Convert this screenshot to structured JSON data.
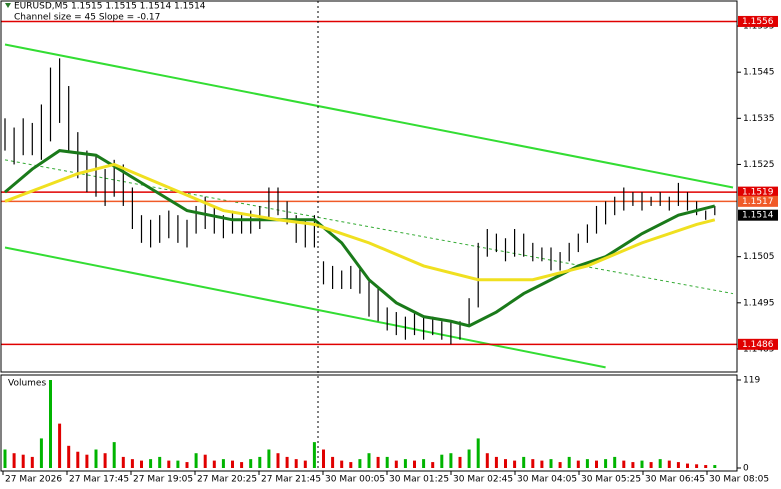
{
  "header": {
    "symbol_line": "EURUSD,M5  1.1515 1.1515 1.1514 1.1514",
    "indicator_line": "Channel size = 45 Slope = -0.17"
  },
  "chart_data": [
    {
      "type": "ohlc",
      "color": "#000000",
      "high": [
        1.1535,
        1.1533,
        1.1535,
        1.1534,
        1.1538,
        1.1546,
        1.1548,
        1.1542,
        1.1532,
        1.1528,
        1.1527,
        1.1524,
        1.1526,
        1.1525,
        1.152,
        1.1514,
        1.1513,
        1.1514,
        1.1515,
        1.1514,
        1.1513,
        1.1516,
        1.1518,
        1.1516,
        1.1514,
        1.1515,
        1.1514,
        1.1515,
        1.1516,
        1.152,
        1.152,
        1.1517,
        1.1514,
        1.1513,
        1.1514,
        1.1504,
        1.1503,
        1.1502,
        1.1503,
        1.1503,
        1.15,
        1.1498,
        1.1494,
        1.1493,
        1.1492,
        1.1493,
        1.1492,
        1.1492,
        1.1491,
        1.1491,
        1.1491,
        1.1496,
        1.1508,
        1.1511,
        1.151,
        1.1509,
        1.1511,
        1.151,
        1.1508,
        1.1507,
        1.1507,
        1.1506,
        1.1508,
        1.151,
        1.1512,
        1.1516,
        1.1517,
        1.1518,
        1.152,
        1.1519,
        1.1519,
        1.1518,
        1.1519,
        1.1518,
        1.1521,
        1.1519,
        1.1517,
        1.1515,
        1.1516
      ],
      "low": [
        1.1528,
        1.1525,
        1.1527,
        1.1527,
        1.1526,
        1.153,
        1.1534,
        1.1528,
        1.1522,
        1.1519,
        1.1518,
        1.1516,
        1.1518,
        1.1516,
        1.1511,
        1.1508,
        1.1507,
        1.1508,
        1.1509,
        1.1508,
        1.1507,
        1.151,
        1.1511,
        1.151,
        1.1509,
        1.151,
        1.151,
        1.151,
        1.1511,
        1.1513,
        1.1514,
        1.1512,
        1.1508,
        1.1507,
        1.1507,
        1.1499,
        1.1498,
        1.1498,
        1.1498,
        1.1497,
        1.1492,
        1.1491,
        1.1489,
        1.1488,
        1.1487,
        1.1488,
        1.1487,
        1.1488,
        1.1487,
        1.1486,
        1.1487,
        1.149,
        1.1494,
        1.1505,
        1.1506,
        1.1504,
        1.1505,
        1.1505,
        1.1504,
        1.1504,
        1.1502,
        1.1502,
        1.1504,
        1.1506,
        1.1508,
        1.151,
        1.1512,
        1.1514,
        1.1515,
        1.1516,
        1.1515,
        1.1516,
        1.1516,
        1.1515,
        1.1516,
        1.1515,
        1.1514,
        1.1513,
        1.1514
      ],
      "ylim": [
        1.148,
        1.156
      ],
      "yticks": [
        1.1485,
        1.1495,
        1.1505,
        1.1525,
        1.1535,
        1.1545,
        1.1555
      ],
      "series": [
        {
          "color": "#1a7a1a",
          "x": [
            0,
            3,
            6,
            10,
            15,
            20,
            25,
            30,
            34,
            37,
            40,
            43,
            46,
            49,
            51,
            54,
            57,
            60,
            63,
            66,
            70,
            74,
            78
          ],
          "values": [
            1.1519,
            1.1524,
            1.1528,
            1.1527,
            1.1521,
            1.1515,
            1.1513,
            1.1513,
            1.1513,
            1.1508,
            1.15,
            1.1495,
            1.1492,
            1.1491,
            1.149,
            1.1493,
            1.1497,
            1.15,
            1.1503,
            1.1505,
            1.151,
            1.1514,
            1.1516
          ]
        },
        {
          "color": "#f0e020",
          "x": [
            0,
            4,
            8,
            12,
            18,
            24,
            30,
            34,
            40,
            46,
            52,
            58,
            64,
            70,
            76,
            78
          ],
          "values": [
            1.1517,
            1.152,
            1.1523,
            1.1525,
            1.152,
            1.1515,
            1.1513,
            1.1512,
            1.1508,
            1.1503,
            1.15,
            1.15,
            1.1503,
            1.1508,
            1.1512,
            1.1513
          ]
        }
      ],
      "channels": [
        {
          "color": "#33dd33",
          "dashed": false,
          "x": [
            0,
            80
          ],
          "values": [
            1.1551,
            1.152
          ]
        },
        {
          "color": "#33aa33",
          "dashed": true,
          "x": [
            0,
            80
          ],
          "values": [
            1.1526,
            1.1497
          ]
        },
        {
          "color": "#33dd33",
          "dashed": false,
          "x": [
            0,
            66
          ],
          "values": [
            1.1507,
            1.1481
          ]
        }
      ],
      "levels": [
        {
          "value": 1.1556,
          "color": "#e00000",
          "line": true
        },
        {
          "value": 1.1519,
          "color": "#e00000",
          "line": true
        },
        {
          "value": 1.1517,
          "color": "#f05a28",
          "line": true
        },
        {
          "value": 1.1514,
          "color": "#000000",
          "line": false
        },
        {
          "value": 1.1486,
          "color": "#e00000",
          "line": true
        }
      ],
      "x_labels": [
        "27 Mar 2026",
        "27 Mar 17:45",
        "27 Mar 19:05",
        "27 Mar 20:25",
        "27 Mar 21:45",
        "30 Mar 00:05",
        "30 Mar 01:25",
        "30 Mar 02:45",
        "30 Mar 04:05",
        "30 Mar 05:25",
        "30 Mar 06:45",
        "30 Mar 08:05"
      ]
    },
    {
      "type": "volume",
      "title": "Volumes",
      "up_color": "#00b400",
      "down_color": "#e00000",
      "values": [
        25,
        20,
        18,
        15,
        40,
        119,
        60,
        30,
        22,
        18,
        25,
        20,
        35,
        15,
        12,
        10,
        12,
        15,
        10,
        10,
        8,
        20,
        18,
        10,
        12,
        10,
        8,
        12,
        15,
        25,
        20,
        15,
        12,
        10,
        35,
        25,
        15,
        10,
        8,
        12,
        20,
        15,
        15,
        10,
        12,
        10,
        12,
        8,
        18,
        20,
        15,
        25,
        40,
        20,
        15,
        12,
        10,
        15,
        12,
        10,
        12,
        8,
        15,
        10,
        12,
        10,
        12,
        15,
        10,
        8,
        10,
        8,
        12,
        10,
        8,
        6,
        5,
        4,
        4
      ],
      "ylim": [
        0,
        119
      ],
      "yticks": [
        0,
        119
      ]
    }
  ]
}
